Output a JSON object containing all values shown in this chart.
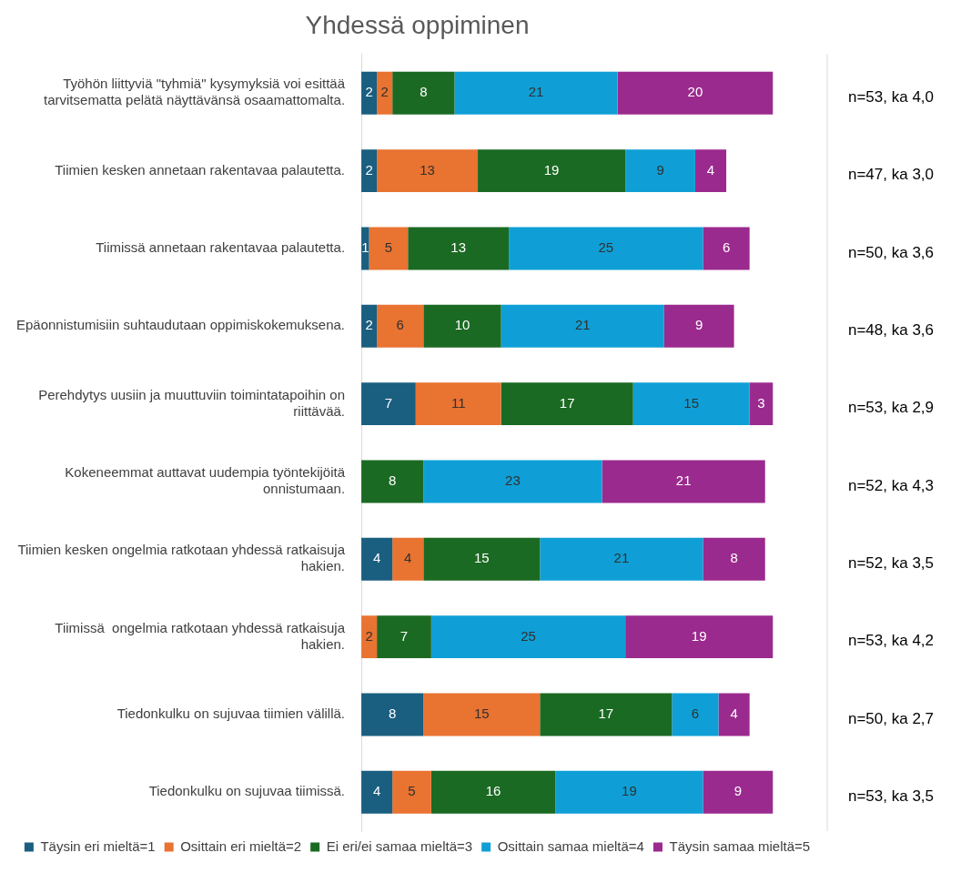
{
  "chart_data": {
    "type": "bar",
    "orientation": "horizontal",
    "stacked": true,
    "title": "Yhdessä oppiminen",
    "categories": [
      "Työhön liittyviä \"tyhmiä\" kysymyksiä voi esittää tarvitsematta pelätä näyttävänsä osaamattomalta.",
      "Tiimien kesken annetaan rakentavaa palautetta.",
      "Tiimissä annetaan rakentavaa palautetta.",
      "Epäonnistumisiin suhtaudutaan oppimiskokemuksena.",
      "Perehdytys uusiin ja muuttuviin toimintatapoihin on riittävää.",
      "Kokeneemmat auttavat uudempia työntekijöitä onnistumaan.",
      "Tiimien kesken ongelmia ratkotaan yhdessä ratkaisuja hakien.",
      "Tiimissä  ongelmia ratkotaan yhdessä ratkaisuja hakien.",
      "Tiedonkulku on sujuvaa tiimien välillä.",
      "Tiedonkulku on sujuvaa tiimissä."
    ],
    "series": [
      {
        "name": "Täysin eri mieltä=1",
        "color": "#1a5e80",
        "values": [
          2,
          2,
          1,
          2,
          7,
          null,
          4,
          null,
          8,
          4
        ]
      },
      {
        "name": "Osittain eri mieltä=2",
        "color": "#e97331",
        "values": [
          2,
          13,
          5,
          6,
          11,
          null,
          4,
          2,
          15,
          5
        ]
      },
      {
        "name": "Ei eri/ei samaa mieltä=3",
        "color": "#1b6a23",
        "values": [
          8,
          19,
          13,
          10,
          17,
          8,
          15,
          7,
          17,
          16
        ]
      },
      {
        "name": "Osittain samaa mieltä=4",
        "color": "#0f9fd6",
        "values": [
          21,
          9,
          25,
          21,
          15,
          23,
          21,
          25,
          6,
          19
        ]
      },
      {
        "name": "Täysin samaa mieltä=5",
        "color": "#9b2a8e",
        "values": [
          20,
          4,
          6,
          9,
          3,
          21,
          8,
          19,
          4,
          9
        ]
      }
    ],
    "xlim": [
      0,
      60
    ],
    "tick_labels": "y",
    "data_labels": true,
    "legend": "bottom",
    "annotations": [
      "n=53, ka 4,0",
      "n=47, ka 3,0",
      "n=50, ka 3,6",
      "n=48, ka 3,6",
      "n=53, ka 2,9",
      "n=52, ka 4,3",
      "n=52, ka 3,5",
      "n=53, ka 4,2",
      "n=50, ka 2,7",
      "n=53, ka 3,5"
    ]
  }
}
